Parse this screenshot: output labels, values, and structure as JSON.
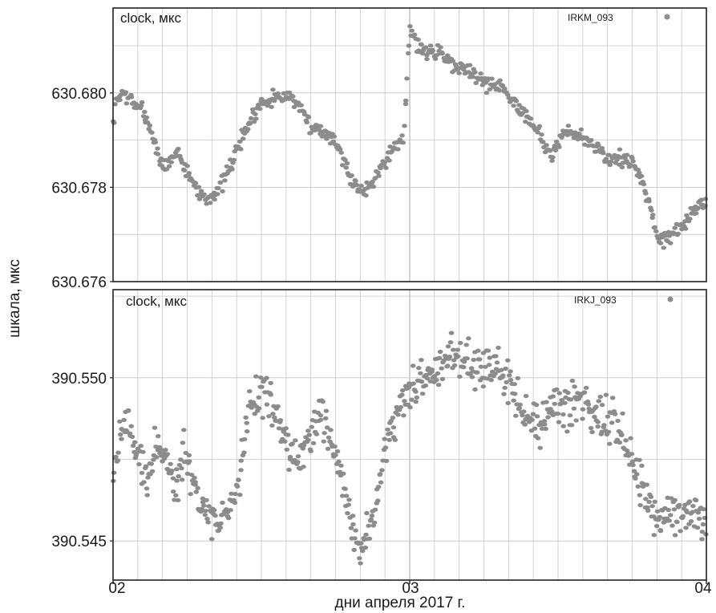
{
  "ylabel": "шкала, мкс",
  "xlabel": "дни апреля 2017 г.",
  "x_ticks": [
    "02",
    "03",
    "04"
  ],
  "colors": {
    "points": "#8c8c8c",
    "grid": "#c8c8c8",
    "frame": "#222222"
  },
  "chart_data": [
    {
      "type": "scatter",
      "title": "clock, мкс",
      "legend": "IRKM_093",
      "legend_placement": "top-right",
      "xlim": [
        2.0,
        4.0
      ],
      "ylim": [
        630.676,
        630.6818
      ],
      "y_ticks": [
        "630.680",
        "630.678",
        "630.676"
      ],
      "y_tick_values": [
        630.68,
        630.678,
        630.676
      ],
      "grid": true,
      "trend": [
        [
          2.0,
          630.6792
        ],
        [
          2.01,
          630.6798
        ],
        [
          2.03,
          630.68
        ],
        [
          2.07,
          630.6798
        ],
        [
          2.1,
          630.6796
        ],
        [
          2.13,
          630.6792
        ],
        [
          2.15,
          630.6787
        ],
        [
          2.17,
          630.6784
        ],
        [
          2.2,
          630.6786
        ],
        [
          2.22,
          630.6788
        ],
        [
          2.24,
          630.6784
        ],
        [
          2.27,
          630.6781
        ],
        [
          2.3,
          630.6778
        ],
        [
          2.33,
          630.6778
        ],
        [
          2.36,
          630.678
        ],
        [
          2.4,
          630.6785
        ],
        [
          2.43,
          630.679
        ],
        [
          2.47,
          630.6795
        ],
        [
          2.5,
          630.6798
        ],
        [
          2.53,
          630.6799
        ],
        [
          2.57,
          630.6799
        ],
        [
          2.6,
          630.68
        ],
        [
          2.63,
          630.6796
        ],
        [
          2.67,
          630.6793
        ],
        [
          2.7,
          630.6792
        ],
        [
          2.74,
          630.6791
        ],
        [
          2.77,
          630.6787
        ],
        [
          2.8,
          630.6782
        ],
        [
          2.84,
          630.6779
        ],
        [
          2.87,
          630.6781
        ],
        [
          2.9,
          630.6784
        ],
        [
          2.93,
          630.6787
        ],
        [
          2.98,
          630.679
        ],
        [
          3.0,
          630.6814
        ],
        [
          3.03,
          630.681
        ],
        [
          3.07,
          630.6808
        ],
        [
          3.1,
          630.6809
        ],
        [
          3.15,
          630.6806
        ],
        [
          3.2,
          630.6805
        ],
        [
          3.25,
          630.6802
        ],
        [
          3.3,
          630.6802
        ],
        [
          3.35,
          630.6798
        ],
        [
          3.4,
          630.6795
        ],
        [
          3.45,
          630.679
        ],
        [
          3.48,
          630.6786
        ],
        [
          3.52,
          630.6792
        ],
        [
          3.57,
          630.6791
        ],
        [
          3.62,
          630.6789
        ],
        [
          3.67,
          630.6786
        ],
        [
          3.72,
          630.6786
        ],
        [
          3.77,
          630.6784
        ],
        [
          3.81,
          630.6776
        ],
        [
          3.84,
          630.6769
        ],
        [
          3.88,
          630.677
        ],
        [
          3.92,
          630.6772
        ],
        [
          3.96,
          630.6775
        ],
        [
          4.0,
          630.6777
        ]
      ]
    },
    {
      "type": "scatter",
      "title": "clock, мкс",
      "legend": "IRKJ_093",
      "legend_placement": "top-right",
      "xlim": [
        2.0,
        4.0
      ],
      "ylim": [
        390.5438,
        390.5527
      ],
      "y_ticks": [
        "390.550",
        "390.545"
      ],
      "y_tick_values": [
        390.55,
        390.545
      ],
      "grid": true,
      "trend": [
        [
          2.0,
          390.547
        ],
        [
          2.02,
          390.548
        ],
        [
          2.04,
          390.5488
        ],
        [
          2.06,
          390.5484
        ],
        [
          2.09,
          390.5475
        ],
        [
          2.12,
          390.5468
        ],
        [
          2.15,
          390.548
        ],
        [
          2.18,
          390.5475
        ],
        [
          2.21,
          390.5467
        ],
        [
          2.24,
          390.5478
        ],
        [
          2.27,
          390.5468
        ],
        [
          2.3,
          390.5463
        ],
        [
          2.33,
          390.5458
        ],
        [
          2.36,
          390.5455
        ],
        [
          2.39,
          390.546
        ],
        [
          2.42,
          390.5466
        ],
        [
          2.46,
          390.5492
        ],
        [
          2.5,
          390.5496
        ],
        [
          2.54,
          390.549
        ],
        [
          2.58,
          390.5482
        ],
        [
          2.62,
          390.5475
        ],
        [
          2.66,
          390.548
        ],
        [
          2.7,
          390.549
        ],
        [
          2.74,
          390.5478
        ],
        [
          2.78,
          390.5465
        ],
        [
          2.81,
          390.5452
        ],
        [
          2.84,
          390.5447
        ],
        [
          2.87,
          390.5456
        ],
        [
          2.9,
          390.5468
        ],
        [
          2.93,
          390.5482
        ],
        [
          2.96,
          390.549
        ],
        [
          3.0,
          390.5494
        ],
        [
          3.04,
          390.5498
        ],
        [
          3.08,
          390.5502
        ],
        [
          3.12,
          390.5505
        ],
        [
          3.16,
          390.5508
        ],
        [
          3.2,
          390.5506
        ],
        [
          3.24,
          390.5503
        ],
        [
          3.28,
          390.5505
        ],
        [
          3.32,
          390.55
        ],
        [
          3.36,
          390.5492
        ],
        [
          3.4,
          390.5487
        ],
        [
          3.44,
          390.5486
        ],
        [
          3.48,
          390.5488
        ],
        [
          3.52,
          390.549
        ],
        [
          3.56,
          390.5493
        ],
        [
          3.6,
          390.5491
        ],
        [
          3.64,
          390.5488
        ],
        [
          3.68,
          390.5487
        ],
        [
          3.72,
          390.548
        ],
        [
          3.76,
          390.5472
        ],
        [
          3.8,
          390.5462
        ],
        [
          3.84,
          390.5455
        ],
        [
          3.88,
          390.546
        ],
        [
          3.92,
          390.5458
        ],
        [
          3.96,
          390.546
        ],
        [
          4.0,
          390.5455
        ]
      ]
    }
  ]
}
